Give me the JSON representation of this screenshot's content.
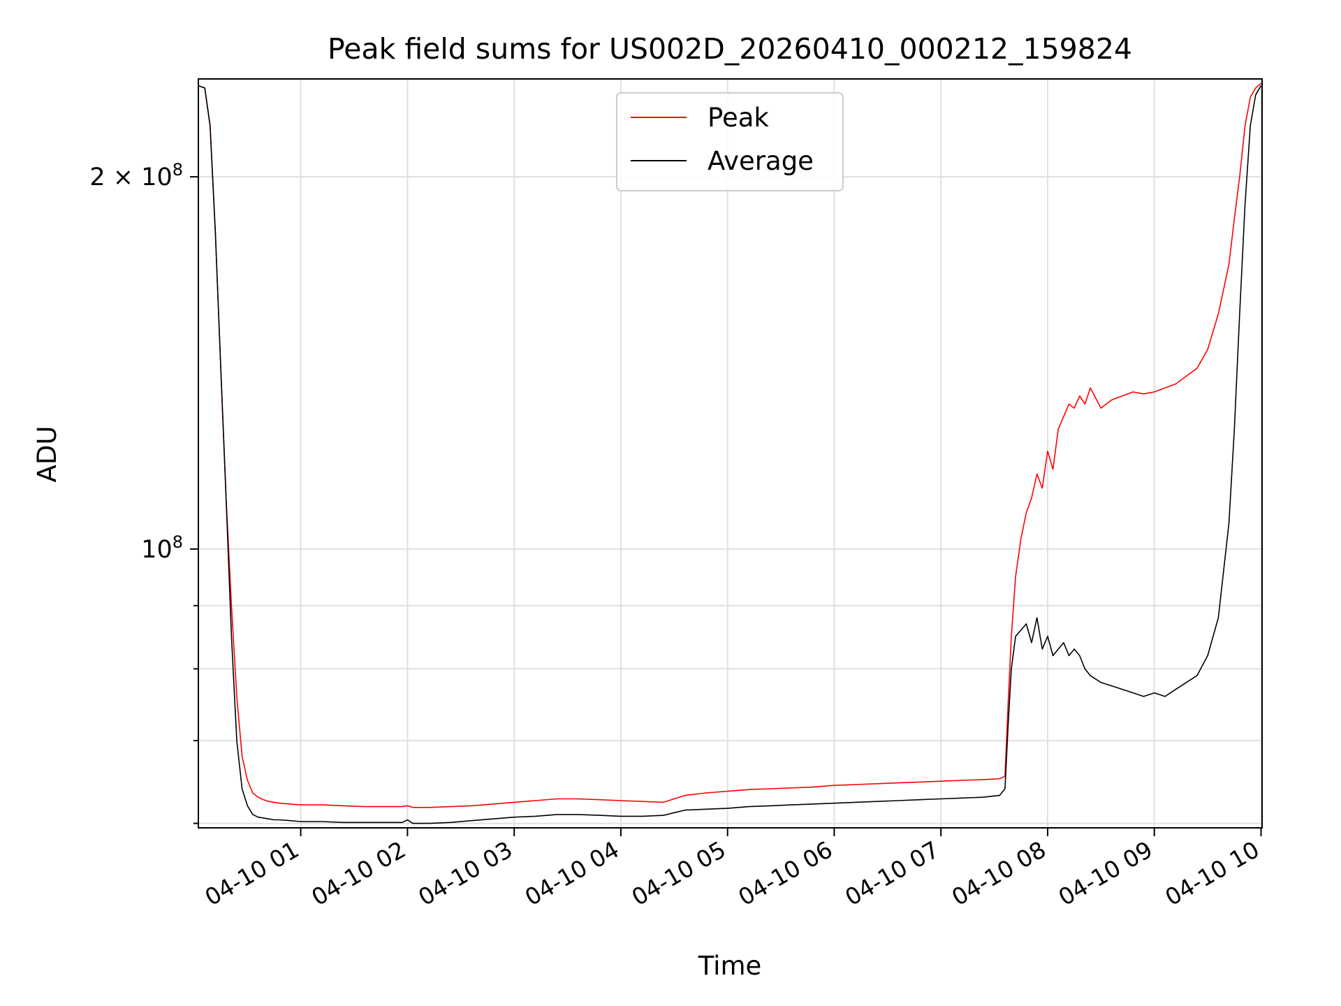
{
  "chart_data": {
    "type": "line",
    "title": "Peak field sums for US002D_20260410_000212_159824",
    "xlabel": "Time",
    "ylabel": "ADU",
    "yscale": "log",
    "grid": true,
    "legend_position": "top-center",
    "xlim_hours": [
      0.04,
      10.01
    ],
    "ylim": [
      59500000,
      240000000
    ],
    "x_ticks": [
      {
        "hour": 1,
        "label": "04-10 01"
      },
      {
        "hour": 2,
        "label": "04-10 02"
      },
      {
        "hour": 3,
        "label": "04-10 03"
      },
      {
        "hour": 4,
        "label": "04-10 04"
      },
      {
        "hour": 5,
        "label": "04-10 05"
      },
      {
        "hour": 6,
        "label": "04-10 06"
      },
      {
        "hour": 7,
        "label": "04-10 07"
      },
      {
        "hour": 8,
        "label": "04-10 08"
      },
      {
        "hour": 9,
        "label": "04-10 09"
      },
      {
        "hour": 10,
        "label": "04-10 10"
      }
    ],
    "y_major_ticks": [
      {
        "value": 100000000,
        "base": "10",
        "exp": "8",
        "prefix": ""
      },
      {
        "value": 200000000,
        "base": "10",
        "exp": "8",
        "prefix": "2 × "
      }
    ],
    "y_minor_ticks": [
      60000000,
      70000000,
      80000000,
      90000000
    ],
    "series": [
      {
        "name": "Peak",
        "color": "#ff0000",
        "x": [
          0.04,
          0.1,
          0.15,
          0.2,
          0.25,
          0.3,
          0.35,
          0.4,
          0.45,
          0.5,
          0.55,
          0.6,
          0.65,
          0.7,
          0.75,
          0.8,
          0.9,
          1.0,
          1.2,
          1.4,
          1.6,
          1.8,
          1.95,
          2.0,
          2.05,
          2.2,
          2.4,
          2.6,
          2.8,
          3.0,
          3.2,
          3.4,
          3.6,
          3.8,
          4.0,
          4.2,
          4.4,
          4.5,
          4.6,
          4.8,
          5.0,
          5.2,
          5.4,
          5.6,
          5.8,
          6.0,
          6.2,
          6.4,
          6.6,
          6.8,
          7.0,
          7.2,
          7.4,
          7.55,
          7.6,
          7.63,
          7.66,
          7.7,
          7.75,
          7.8,
          7.85,
          7.9,
          7.95,
          8.0,
          8.05,
          8.1,
          8.15,
          8.2,
          8.25,
          8.3,
          8.35,
          8.4,
          8.5,
          8.6,
          8.7,
          8.8,
          8.9,
          9.0,
          9.1,
          9.2,
          9.3,
          9.4,
          9.5,
          9.6,
          9.7,
          9.75,
          9.8,
          9.85,
          9.9,
          9.95,
          10.0
        ],
        "y": [
          237000000,
          236000000,
          220000000,
          180000000,
          140000000,
          110000000,
          90000000,
          76000000,
          68000000,
          65000000,
          63500000,
          63000000,
          62700000,
          62500000,
          62400000,
          62300000,
          62200000,
          62100000,
          62100000,
          62000000,
          61900000,
          61900000,
          61900000,
          62000000,
          61800000,
          61800000,
          61900000,
          62000000,
          62200000,
          62400000,
          62600000,
          62800000,
          62800000,
          62700000,
          62600000,
          62500000,
          62400000,
          62800000,
          63200000,
          63500000,
          63700000,
          63900000,
          64000000,
          64100000,
          64200000,
          64400000,
          64500000,
          64600000,
          64700000,
          64800000,
          64900000,
          65000000,
          65100000,
          65200000,
          65500000,
          75000000,
          85000000,
          95000000,
          102000000,
          107000000,
          110000000,
          115000000,
          112000000,
          120000000,
          116000000,
          125000000,
          128000000,
          131000000,
          130000000,
          133000000,
          131000000,
          135000000,
          130000000,
          132000000,
          133000000,
          134000000,
          133500000,
          134000000,
          135000000,
          136000000,
          138000000,
          140000000,
          145000000,
          155000000,
          170000000,
          185000000,
          200000000,
          220000000,
          232000000,
          236000000,
          238000000
        ]
      },
      {
        "name": "Average",
        "color": "#000000",
        "x": [
          0.04,
          0.1,
          0.15,
          0.2,
          0.25,
          0.3,
          0.35,
          0.4,
          0.45,
          0.5,
          0.55,
          0.6,
          0.65,
          0.7,
          0.75,
          0.8,
          0.9,
          1.0,
          1.2,
          1.4,
          1.6,
          1.8,
          1.95,
          2.0,
          2.05,
          2.2,
          2.4,
          2.6,
          2.8,
          3.0,
          3.2,
          3.4,
          3.6,
          3.8,
          4.0,
          4.2,
          4.4,
          4.5,
          4.6,
          4.8,
          5.0,
          5.2,
          5.4,
          5.6,
          5.8,
          6.0,
          6.2,
          6.4,
          6.6,
          6.8,
          7.0,
          7.2,
          7.4,
          7.55,
          7.6,
          7.63,
          7.66,
          7.7,
          7.75,
          7.8,
          7.85,
          7.9,
          7.95,
          8.0,
          8.05,
          8.1,
          8.15,
          8.2,
          8.25,
          8.3,
          8.35,
          8.4,
          8.5,
          8.6,
          8.7,
          8.8,
          8.9,
          9.0,
          9.1,
          9.2,
          9.3,
          9.4,
          9.5,
          9.6,
          9.7,
          9.75,
          9.8,
          9.85,
          9.9,
          9.95,
          10.0
        ],
        "y": [
          237000000,
          236000000,
          220000000,
          180000000,
          140000000,
          110000000,
          85000000,
          70000000,
          64000000,
          62000000,
          61000000,
          60700000,
          60600000,
          60500000,
          60400000,
          60400000,
          60300000,
          60200000,
          60200000,
          60100000,
          60100000,
          60100000,
          60100000,
          60400000,
          60000000,
          60000000,
          60100000,
          60300000,
          60500000,
          60700000,
          60800000,
          61000000,
          61000000,
          60900000,
          60800000,
          60800000,
          60900000,
          61200000,
          61500000,
          61600000,
          61700000,
          61900000,
          62000000,
          62100000,
          62200000,
          62300000,
          62400000,
          62500000,
          62600000,
          62700000,
          62800000,
          62900000,
          63000000,
          63200000,
          64000000,
          72000000,
          80000000,
          85000000,
          86000000,
          87000000,
          84000000,
          88000000,
          83000000,
          85000000,
          82000000,
          83000000,
          84000000,
          82000000,
          83000000,
          82000000,
          80000000,
          79000000,
          78000000,
          77500000,
          77000000,
          76500000,
          76000000,
          76500000,
          76000000,
          77000000,
          78000000,
          79000000,
          82000000,
          88000000,
          105000000,
          125000000,
          155000000,
          190000000,
          220000000,
          233000000,
          237000000
        ]
      }
    ]
  }
}
